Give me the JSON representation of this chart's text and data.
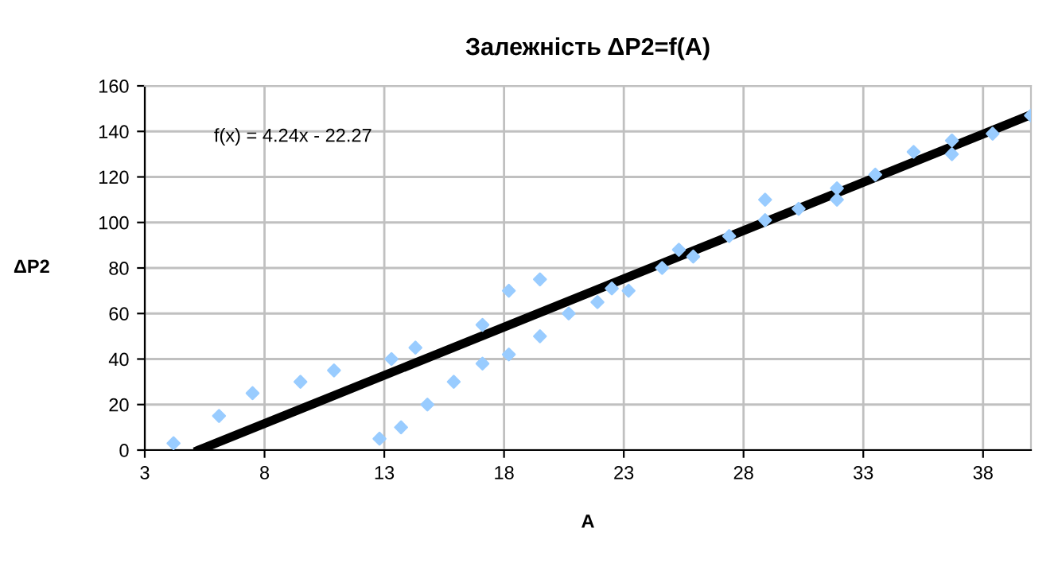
{
  "chart_data": {
    "type": "scatter",
    "title": "Залежність ΔP2=f(A)",
    "xlabel": "A",
    "ylabel": "ΔP2",
    "xlim": [
      3,
      40
    ],
    "ylim": [
      0,
      160
    ],
    "xticks": [
      3,
      8,
      13,
      18,
      23,
      28,
      33,
      38
    ],
    "yticks": [
      0,
      20,
      40,
      60,
      80,
      100,
      120,
      140,
      160
    ],
    "grid": true,
    "annotations": [
      "f(x) = 4.24x - 22.27"
    ],
    "series": [
      {
        "marker": "diamond",
        "color": "#99ccff",
        "x": [
          4.2,
          6.1,
          7.5,
          9.5,
          10.9,
          12.8,
          13.3,
          13.7,
          14.3,
          14.8,
          15.9,
          17.1,
          17.1,
          18.2,
          18.2,
          19.5,
          19.5,
          20.7,
          21.9,
          22.5,
          23.2,
          24.6,
          25.3,
          25.9,
          27.4,
          28.9,
          28.9,
          30.3,
          31.9,
          31.9,
          33.5,
          35.1,
          36.7,
          36.7,
          38.4,
          40
        ],
        "values": [
          3,
          15,
          25,
          30,
          35,
          5,
          40,
          10,
          45,
          20,
          30,
          55,
          38,
          42,
          70,
          75,
          50,
          60,
          65,
          71,
          70,
          80,
          88,
          85,
          94,
          110,
          101,
          106,
          115,
          110,
          121,
          131,
          136,
          130,
          139,
          147
        ]
      },
      {
        "type": "line",
        "marker": "none",
        "color": "#000000",
        "x": [
          5.25,
          40
        ],
        "values": [
          0,
          147.3
        ]
      }
    ]
  }
}
